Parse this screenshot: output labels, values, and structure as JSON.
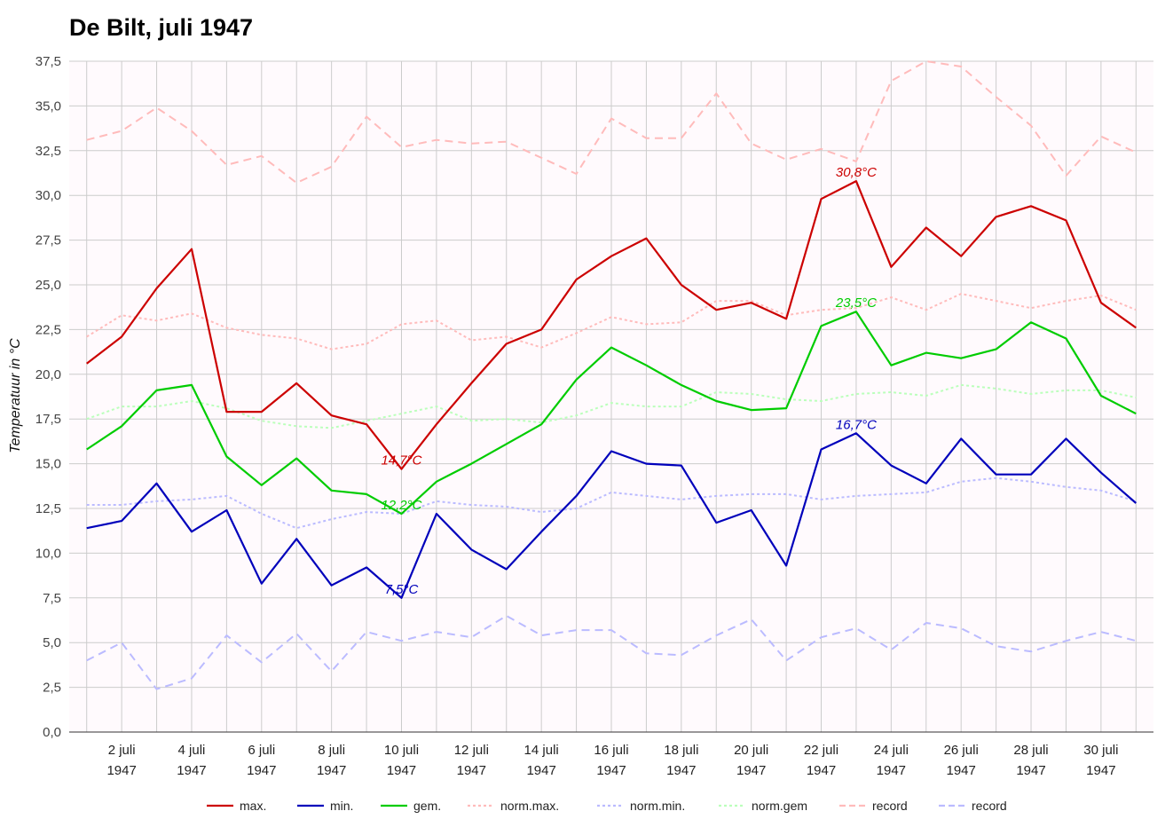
{
  "chart_data": {
    "type": "line",
    "title": "De Bilt, juli 1947",
    "ylabel": "Temperatuur in °C",
    "xlabel": "",
    "ylim": [
      0,
      37.5
    ],
    "yticks": [
      "0,0",
      "2,5",
      "5,0",
      "7,5",
      "10,0",
      "12,5",
      "15,0",
      "17,5",
      "20,0",
      "22,5",
      "25,0",
      "27,5",
      "30,0",
      "32,5",
      "35,0",
      "37,5"
    ],
    "ytick_values": [
      0,
      2.5,
      5,
      7.5,
      10,
      12.5,
      15,
      17.5,
      20,
      22.5,
      25,
      27.5,
      30,
      32.5,
      35,
      37.5
    ],
    "x": [
      1,
      2,
      3,
      4,
      5,
      6,
      7,
      8,
      9,
      10,
      11,
      12,
      13,
      14,
      15,
      16,
      17,
      18,
      19,
      20,
      21,
      22,
      23,
      24,
      25,
      26,
      27,
      28,
      29,
      30,
      31
    ],
    "xlim": [
      0.5,
      31.5
    ],
    "xtick_labels": [
      {
        "x": 2,
        "line1": "2 juli",
        "line2": "1947"
      },
      {
        "x": 4,
        "line1": "4 juli",
        "line2": "1947"
      },
      {
        "x": 6,
        "line1": "6 juli",
        "line2": "1947"
      },
      {
        "x": 8,
        "line1": "8 juli",
        "line2": "1947"
      },
      {
        "x": 10,
        "line1": "10 juli",
        "line2": "1947"
      },
      {
        "x": 12,
        "line1": "12 juli",
        "line2": "1947"
      },
      {
        "x": 14,
        "line1": "14 juli",
        "line2": "1947"
      },
      {
        "x": 16,
        "line1": "16 juli",
        "line2": "1947"
      },
      {
        "x": 18,
        "line1": "18 juli",
        "line2": "1947"
      },
      {
        "x": 20,
        "line1": "20 juli",
        "line2": "1947"
      },
      {
        "x": 22,
        "line1": "22 juli",
        "line2": "1947"
      },
      {
        "x": 24,
        "line1": "24 juli",
        "line2": "1947"
      },
      {
        "x": 26,
        "line1": "26 juli",
        "line2": "1947"
      },
      {
        "x": 28,
        "line1": "28 juli",
        "line2": "1947"
      },
      {
        "x": 30,
        "line1": "30 juli",
        "line2": "1947"
      }
    ],
    "grid": true,
    "legend_position": "bottom",
    "series": [
      {
        "name": "record",
        "color": "#ffbbbb",
        "style": "dashed",
        "width": 2,
        "values": [
          33.1,
          33.6,
          34.9,
          33.6,
          31.7,
          32.2,
          30.7,
          31.6,
          34.4,
          32.7,
          33.1,
          32.9,
          33.0,
          32.1,
          31.2,
          34.3,
          33.2,
          33.2,
          35.7,
          32.9,
          32.0,
          32.6,
          31.9,
          36.4,
          37.5,
          37.2,
          35.5,
          33.9,
          31.1,
          33.3,
          32.4
        ]
      },
      {
        "name": "norm.max.",
        "color": "#ffbbbb",
        "style": "dotted",
        "width": 2,
        "values": [
          22.1,
          23.3,
          23.0,
          23.4,
          22.6,
          22.2,
          22.0,
          21.4,
          21.7,
          22.8,
          23.0,
          21.9,
          22.1,
          21.5,
          22.3,
          23.2,
          22.8,
          22.9,
          24.1,
          24.1,
          23.3,
          23.6,
          23.7,
          24.3,
          23.6,
          24.5,
          24.1,
          23.7,
          24.1,
          24.4,
          23.6
        ]
      },
      {
        "name": "norm.gem",
        "color": "#bbffbb",
        "style": "dotted",
        "width": 2,
        "values": [
          17.5,
          18.2,
          18.2,
          18.5,
          18.1,
          17.4,
          17.1,
          17.0,
          17.4,
          17.8,
          18.2,
          17.4,
          17.5,
          17.3,
          17.7,
          18.4,
          18.2,
          18.2,
          19.0,
          18.9,
          18.6,
          18.5,
          18.9,
          19.0,
          18.8,
          19.4,
          19.2,
          18.9,
          19.1,
          19.1,
          18.7
        ]
      },
      {
        "name": "norm.min.",
        "color": "#bbbbff",
        "style": "dotted",
        "width": 2,
        "values": [
          12.7,
          12.7,
          12.9,
          13.0,
          13.2,
          12.2,
          11.4,
          11.9,
          12.3,
          12.2,
          12.9,
          12.7,
          12.6,
          12.3,
          12.5,
          13.4,
          13.2,
          13.0,
          13.2,
          13.3,
          13.3,
          13.0,
          13.2,
          13.3,
          13.4,
          14.0,
          14.2,
          14.0,
          13.7,
          13.5,
          12.9
        ]
      },
      {
        "name": "record",
        "color": "#bbbbff",
        "style": "dashed",
        "width": 2,
        "values": [
          4.0,
          5.0,
          2.4,
          3.0,
          5.4,
          3.9,
          5.5,
          3.4,
          5.6,
          5.1,
          5.6,
          5.3,
          6.5,
          5.4,
          5.7,
          5.7,
          4.4,
          4.3,
          5.4,
          6.3,
          4.0,
          5.3,
          5.8,
          4.6,
          6.1,
          5.8,
          4.8,
          4.5,
          5.1,
          5.6,
          5.1
        ]
      },
      {
        "name": "min.",
        "color": "#0000bb",
        "style": "solid",
        "width": 2.2,
        "values": [
          11.4,
          11.8,
          13.9,
          11.2,
          12.4,
          8.3,
          10.8,
          8.2,
          9.2,
          7.5,
          12.2,
          10.2,
          9.1,
          11.2,
          13.2,
          15.7,
          15.0,
          14.9,
          11.7,
          12.4,
          9.3,
          15.8,
          16.7,
          14.9,
          13.9,
          16.4,
          14.4,
          14.4,
          16.4,
          14.5,
          12.8
        ]
      },
      {
        "name": "gem.",
        "color": "#00cc00",
        "style": "solid",
        "width": 2.2,
        "values": [
          15.8,
          17.1,
          19.1,
          19.4,
          15.4,
          13.8,
          15.3,
          13.5,
          13.3,
          12.2,
          14.0,
          15.0,
          16.1,
          17.2,
          19.7,
          21.5,
          20.5,
          19.4,
          18.5,
          18.0,
          18.1,
          22.7,
          23.5,
          20.5,
          21.2,
          20.9,
          21.4,
          22.9,
          22.0,
          18.8,
          17.8
        ]
      },
      {
        "name": "max.",
        "color": "#cc0000",
        "style": "solid",
        "width": 2.2,
        "values": [
          20.6,
          22.1,
          24.8,
          27.0,
          17.9,
          17.9,
          19.5,
          17.7,
          17.2,
          14.7,
          17.2,
          19.5,
          21.7,
          22.5,
          25.3,
          26.6,
          27.6,
          25.0,
          23.6,
          24.0,
          23.1,
          29.8,
          30.8,
          26.0,
          28.2,
          26.6,
          28.8,
          29.4,
          28.6,
          24.0,
          22.6
        ]
      }
    ],
    "annotations": [
      {
        "text": "30,8°C",
        "x": 23,
        "y": 30.8,
        "color": "#cc0000"
      },
      {
        "text": "14,7°C",
        "x": 10,
        "y": 14.7,
        "color": "#cc0000"
      },
      {
        "text": "23,5°C",
        "x": 23,
        "y": 23.5,
        "color": "#00cc00"
      },
      {
        "text": "12,2°C",
        "x": 10,
        "y": 12.2,
        "color": "#00cc00"
      },
      {
        "text": "16,7°C",
        "x": 23,
        "y": 16.7,
        "color": "#0000bb"
      },
      {
        "text": "7,5°C",
        "x": 10,
        "y": 7.5,
        "color": "#0000bb"
      }
    ],
    "legend": [
      {
        "label": "max.",
        "color": "#cc0000",
        "style": "solid"
      },
      {
        "label": "min.",
        "color": "#0000bb",
        "style": "solid"
      },
      {
        "label": "gem.",
        "color": "#00cc00",
        "style": "solid"
      },
      {
        "label": "norm.max.",
        "color": "#ffbbbb",
        "style": "dotted"
      },
      {
        "label": "norm.min.",
        "color": "#bbbbff",
        "style": "dotted"
      },
      {
        "label": "norm.gem",
        "color": "#bbffbb",
        "style": "dotted"
      },
      {
        "label": "record",
        "color": "#ffbbbb",
        "style": "dashed"
      },
      {
        "label": "record",
        "color": "#bbbbff",
        "style": "dashed"
      }
    ]
  }
}
